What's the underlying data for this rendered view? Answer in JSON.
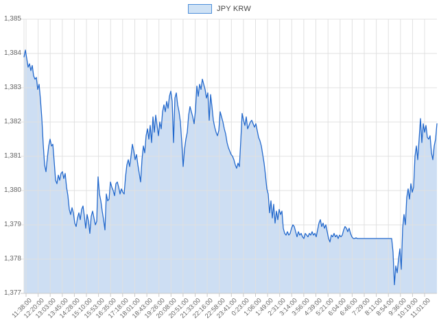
{
  "legend": {
    "label": "JPY KRW",
    "swatch_fill": "#cfe2f5",
    "swatch_border": "#4c8ed9"
  },
  "chart_data": {
    "type": "area",
    "title": "",
    "series_name": "JPY KRW",
    "ylim": [
      1377,
      1385
    ],
    "grid": true,
    "legend_position": "top-center",
    "line_color": "#2268cc",
    "fill_color": "#cddef3",
    "grid_color": "#e0e0e0",
    "axis_line_color": "#c9c9c9",
    "label_color": "#666666",
    "y_ticks": [
      1385,
      1384,
      1383,
      1382,
      1381,
      1380,
      1379,
      1378,
      1377
    ],
    "y_tick_labels": [
      "1,385",
      "1,384",
      "1,383",
      "1,382",
      "1,381",
      "1,380",
      "1,379",
      "1,378",
      "1,377"
    ],
    "x_tick_labels": [
      "11:38:00",
      "12:20:00",
      "13:03:00",
      "13:45:00",
      "14:28:00",
      "15:10:00",
      "15:53:00",
      "16:35:00",
      "17:18:00",
      "18:01:00",
      "18:43:00",
      "19:26:00",
      "20:08:00",
      "20:51:00",
      "21:33:00",
      "22:16:00",
      "22:58:00",
      "23:41:00",
      "0:23:00",
      "1:06:00",
      "1:49:00",
      "2:31:00",
      "3:14:00",
      "3:56:00",
      "4:39:00",
      "5:21:00",
      "6:04:00",
      "6:46:00",
      "7:29:00",
      "8:11:00",
      "8:54:00",
      "9:36:00",
      "10:19:00",
      "11:01:00"
    ],
    "values": [
      1383.9,
      1384.1,
      1383.85,
      1383.6,
      1383.7,
      1383.5,
      1383.65,
      1383.35,
      1383.25,
      1383.3,
      1382.95,
      1383.1,
      1382.65,
      1382.1,
      1381.35,
      1380.75,
      1380.55,
      1380.95,
      1381.3,
      1381.5,
      1381.3,
      1381.35,
      1380.85,
      1380.3,
      1380.2,
      1380.45,
      1380.3,
      1380.5,
      1380.55,
      1380.35,
      1380.5,
      1380.1,
      1379.85,
      1379.45,
      1379.3,
      1379.5,
      1379.35,
      1379.05,
      1378.95,
      1379.2,
      1379.35,
      1379.15,
      1379.45,
      1379.55,
      1379.25,
      1378.9,
      1379.3,
      1379.1,
      1378.75,
      1379.25,
      1379.4,
      1379.2,
      1379.0,
      1379.1,
      1380.4,
      1379.9,
      1379.7,
      1379.4,
      1379.15,
      1378.85,
      1379.9,
      1379.7,
      1379.75,
      1380.25,
      1380.1,
      1380.0,
      1379.85,
      1380.2,
      1380.25,
      1380.1,
      1379.9,
      1380.05,
      1379.95,
      1379.9,
      1380.4,
      1380.75,
      1380.9,
      1380.7,
      1381.0,
      1381.35,
      1381.15,
      1380.9,
      1381.05,
      1380.75,
      1380.5,
      1380.25,
      1380.9,
      1381.3,
      1381.1,
      1381.6,
      1381.8,
      1381.5,
      1381.9,
      1381.4,
      1382.15,
      1381.7,
      1382.2,
      1381.9,
      1381.6,
      1382.0,
      1381.8,
      1382.3,
      1382.5,
      1382.3,
      1382.6,
      1382.4,
      1382.75,
      1382.9,
      1382.6,
      1381.4,
      1382.7,
      1382.85,
      1382.5,
      1382.3,
      1382.0,
      1381.4,
      1380.7,
      1381.2,
      1381.5,
      1381.7,
      1382.2,
      1382.45,
      1382.3,
      1382.15,
      1381.95,
      1382.35,
      1383.05,
      1382.75,
      1383.1,
      1382.95,
      1383.25,
      1383.1,
      1382.95,
      1382.7,
      1382.85,
      1382.05,
      1382.8,
      1382.45,
      1382.05,
      1381.85,
      1381.7,
      1381.6,
      1381.75,
      1382.3,
      1382.15,
      1382.0,
      1381.8,
      1381.65,
      1381.4,
      1381.25,
      1381.15,
      1381.05,
      1381.0,
      1380.9,
      1380.75,
      1380.65,
      1380.8,
      1380.7,
      1381.45,
      1382.25,
      1382.05,
      1381.9,
      1382.15,
      1381.8,
      1381.9,
      1382.0,
      1382.05,
      1381.95,
      1381.85,
      1381.95,
      1381.75,
      1381.55,
      1381.45,
      1381.3,
      1381.05,
      1380.8,
      1380.45,
      1380.05,
      1379.9,
      1379.35,
      1379.7,
      1379.2,
      1379.6,
      1379.05,
      1379.4,
      1379.15,
      1379.45,
      1379.3,
      1379.4,
      1378.9,
      1378.75,
      1378.7,
      1378.8,
      1378.7,
      1378.75,
      1378.9,
      1379.0,
      1378.95,
      1378.8,
      1378.65,
      1378.8,
      1378.7,
      1378.75,
      1378.65,
      1378.6,
      1378.75,
      1378.7,
      1378.65,
      1378.75,
      1378.7,
      1378.8,
      1378.7,
      1378.75,
      1378.65,
      1378.85,
      1379.05,
      1379.15,
      1378.95,
      1379.05,
      1378.9,
      1379.0,
      1378.8,
      1378.6,
      1378.5,
      1378.7,
      1378.65,
      1378.75,
      1378.65,
      1378.7,
      1378.6,
      1378.7,
      1378.65,
      1378.7,
      1378.85,
      1378.95,
      1378.9,
      1378.8,
      1378.9,
      1378.75,
      1378.65,
      1378.6,
      1378.6,
      1378.62,
      1378.6,
      1378.6,
      1378.6,
      1378.6,
      1378.6,
      1378.6,
      1378.6,
      1378.6,
      1378.6,
      1378.6,
      1378.6,
      1378.6,
      1378.6,
      1378.6,
      1378.6,
      1378.6,
      1378.6,
      1378.6,
      1378.6,
      1378.6,
      1378.6,
      1378.6,
      1378.6,
      1378.6,
      1378.6,
      1378.6,
      1378.2,
      1377.25,
      1377.8,
      1377.6,
      1378.0,
      1378.3,
      1377.7,
      1378.9,
      1379.3,
      1379.0,
      1379.8,
      1380.05,
      1379.75,
      1380.2,
      1379.95,
      1380.1,
      1381.0,
      1381.3,
      1380.9,
      1381.5,
      1382.1,
      1381.4,
      1381.95,
      1381.7,
      1381.9,
      1381.55,
      1381.5,
      1381.6,
      1381.1,
      1380.9,
      1381.3,
      1381.5,
      1381.95
    ]
  }
}
